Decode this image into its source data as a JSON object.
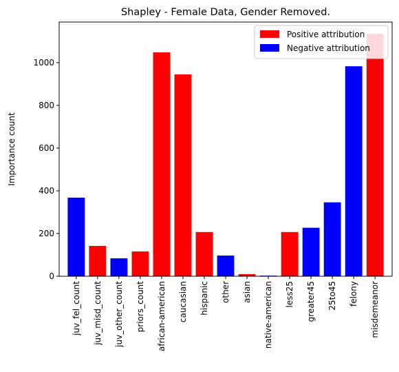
{
  "chart_data": {
    "type": "bar",
    "title": "Shapley - Female Data, Gender Removed.",
    "xlabel": "",
    "ylabel": "Importance count",
    "ylim": [
      0,
      1190
    ],
    "yticks": [
      0,
      200,
      400,
      600,
      800,
      1000
    ],
    "categories": [
      "juv_fel_count",
      "juv_misd_count",
      "juv_other_count",
      "priors_count",
      "african-american",
      "caucasian",
      "hispanic",
      "other",
      "asian",
      "native-american",
      "less25",
      "greater45",
      "25to45",
      "felony",
      "misdemeanor"
    ],
    "values": [
      368,
      142,
      84,
      116,
      1048,
      945,
      207,
      97,
      10,
      3,
      207,
      227,
      346,
      983,
      1135
    ],
    "attribution": [
      "negative",
      "positive",
      "negative",
      "positive",
      "positive",
      "positive",
      "positive",
      "negative",
      "positive",
      "negative",
      "positive",
      "negative",
      "negative",
      "negative",
      "positive"
    ],
    "colors": {
      "positive": "#ff0000",
      "negative": "#0000ff"
    },
    "legend": {
      "placement": "top-right",
      "entries": [
        {
          "label": "Positive attribution",
          "color": "#ff0000"
        },
        {
          "label": "Negative attribution",
          "color": "#0000ff"
        }
      ]
    },
    "grid": false
  }
}
